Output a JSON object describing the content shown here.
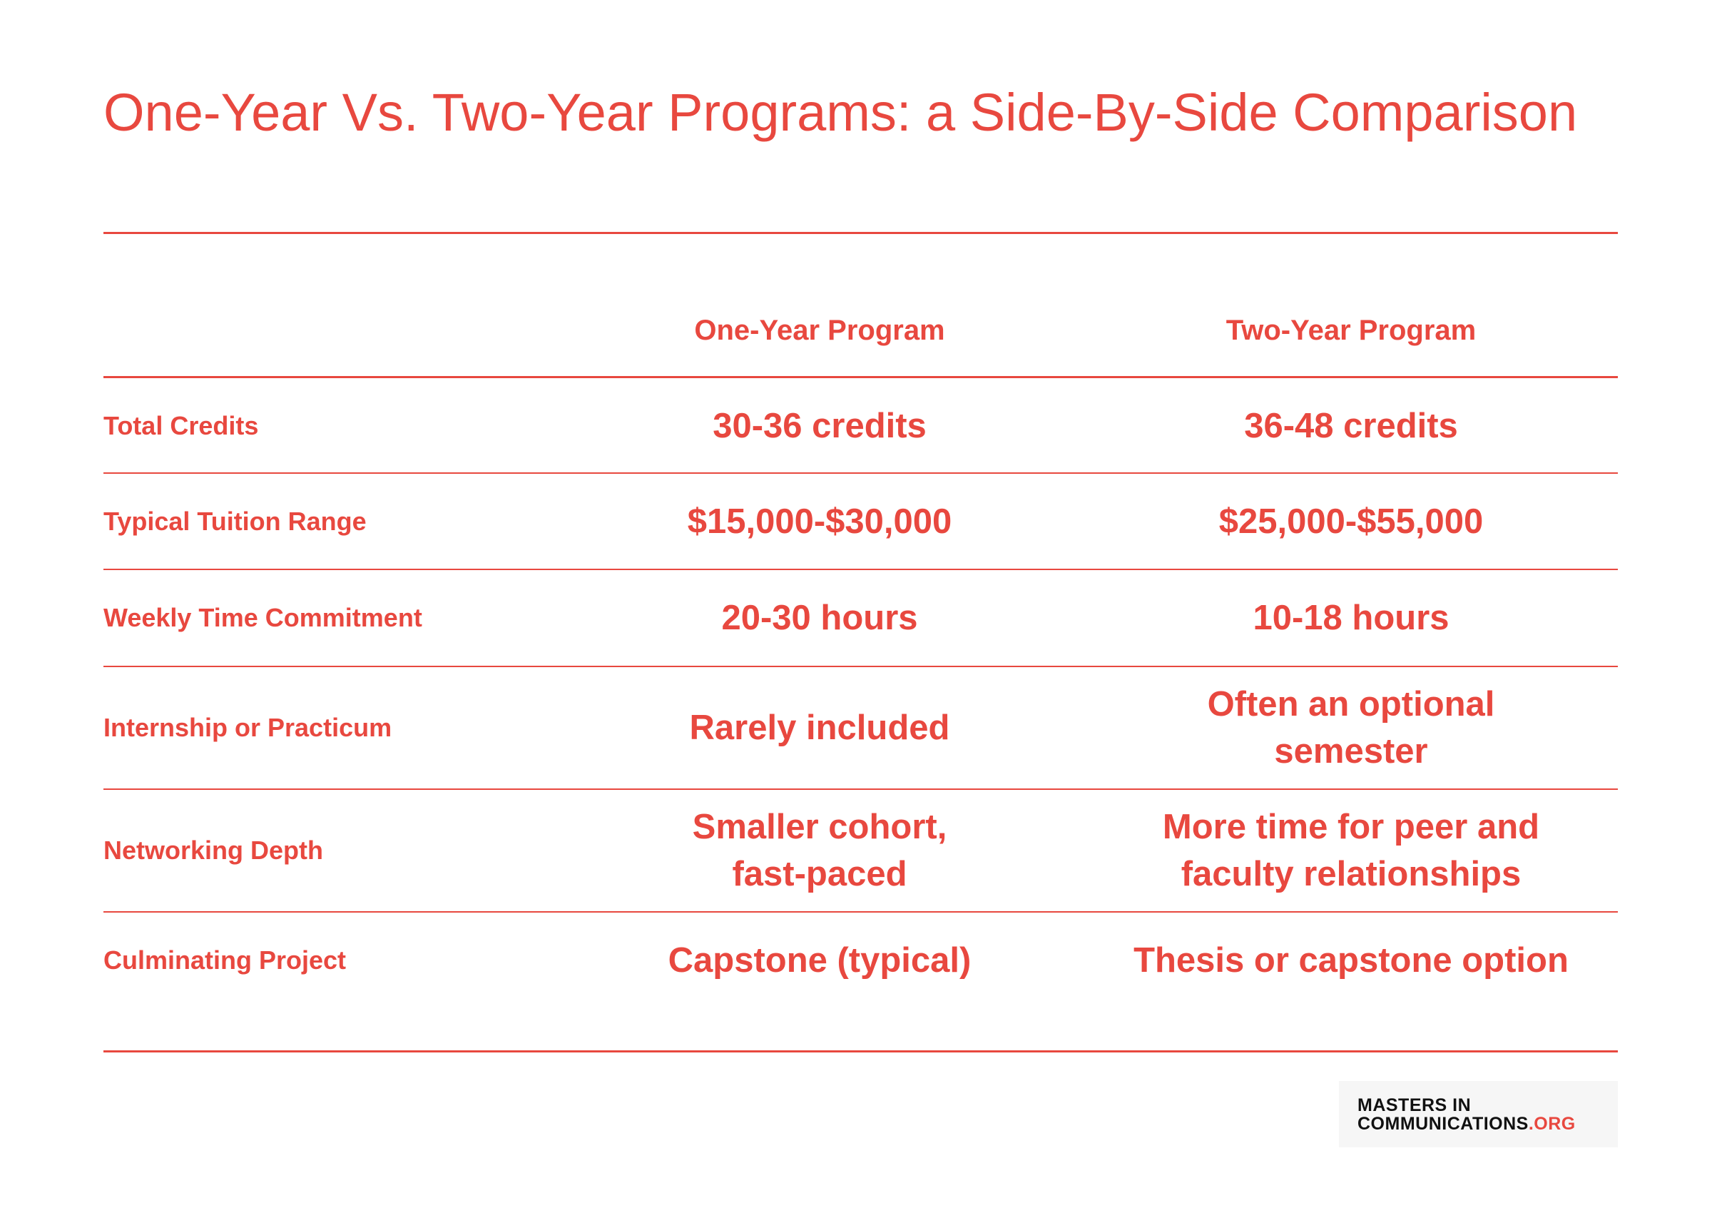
{
  "title": "One-Year Vs. Two-Year Programs: a Side-By-Side Comparison",
  "table": {
    "header": [
      "One-Year Program",
      "Two-Year Program"
    ],
    "rows": [
      {
        "label": "Total Credits",
        "cells": [
          [
            "30-36 credits"
          ],
          [
            "36-48 credits"
          ]
        ]
      },
      {
        "label": "Typical Tuition Range",
        "cells": [
          [
            "$15,000-$30,000"
          ],
          [
            "$25,000-$55,000"
          ]
        ]
      },
      {
        "label": "Weekly Time Commitment",
        "cells": [
          [
            "20-30 hours"
          ],
          [
            "10-18 hours"
          ]
        ]
      },
      {
        "label": "Internship or Practicum",
        "cells": [
          [
            "Rarely included"
          ],
          [
            "Often an optional",
            "semester"
          ]
        ]
      },
      {
        "label": "Networking Depth",
        "cells": [
          [
            "Smaller cohort,",
            "fast-paced"
          ],
          [
            "More time for peer and",
            "faculty relationships"
          ]
        ]
      },
      {
        "label": "Culminating Project",
        "cells": [
          [
            "Capstone (typical)"
          ],
          [
            "Thesis or capstone option"
          ]
        ]
      }
    ]
  },
  "logo": {
    "line1": "MASTERS IN",
    "line2": "COMMUNICATIONS",
    "suffix": ".ORG"
  }
}
